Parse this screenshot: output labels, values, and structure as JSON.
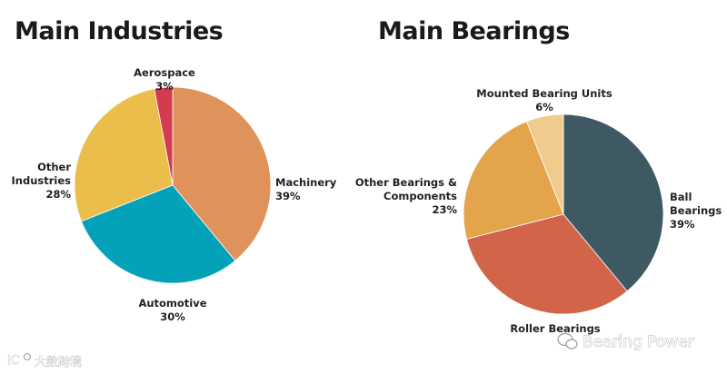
{
  "chart_data": [
    {
      "type": "pie",
      "title": "Main Industries",
      "slices": [
        {
          "label": "Machinery",
          "value": 39,
          "display": "39%",
          "color": "#df935a"
        },
        {
          "label": "Automotive",
          "value": 30,
          "display": "30%",
          "color": "#03a2b8"
        },
        {
          "label": "Other Industries",
          "value": 28,
          "display": "28%",
          "color": "#ebbd4a"
        },
        {
          "label": "Aerospace",
          "value": 3,
          "display": "3%",
          "color": "#d33b4e"
        }
      ]
    },
    {
      "type": "pie",
      "title": "Main Bearings",
      "slices": [
        {
          "label": "Ball Bearings",
          "value": 39,
          "display": "39%",
          "color": "#3e5961"
        },
        {
          "label": "Roller Bearings",
          "value": 32,
          "display": "",
          "color": "#d2644a"
        },
        {
          "label": "Other Bearings & Components",
          "value": 23,
          "display": "23%",
          "color": "#e3a44c"
        },
        {
          "label": "Mounted Bearing Units",
          "value": 6,
          "display": "6%",
          "color": "#f1ca8d"
        }
      ]
    }
  ],
  "watermarks": {
    "right": "Bearing Power",
    "left": "大數跨境"
  }
}
